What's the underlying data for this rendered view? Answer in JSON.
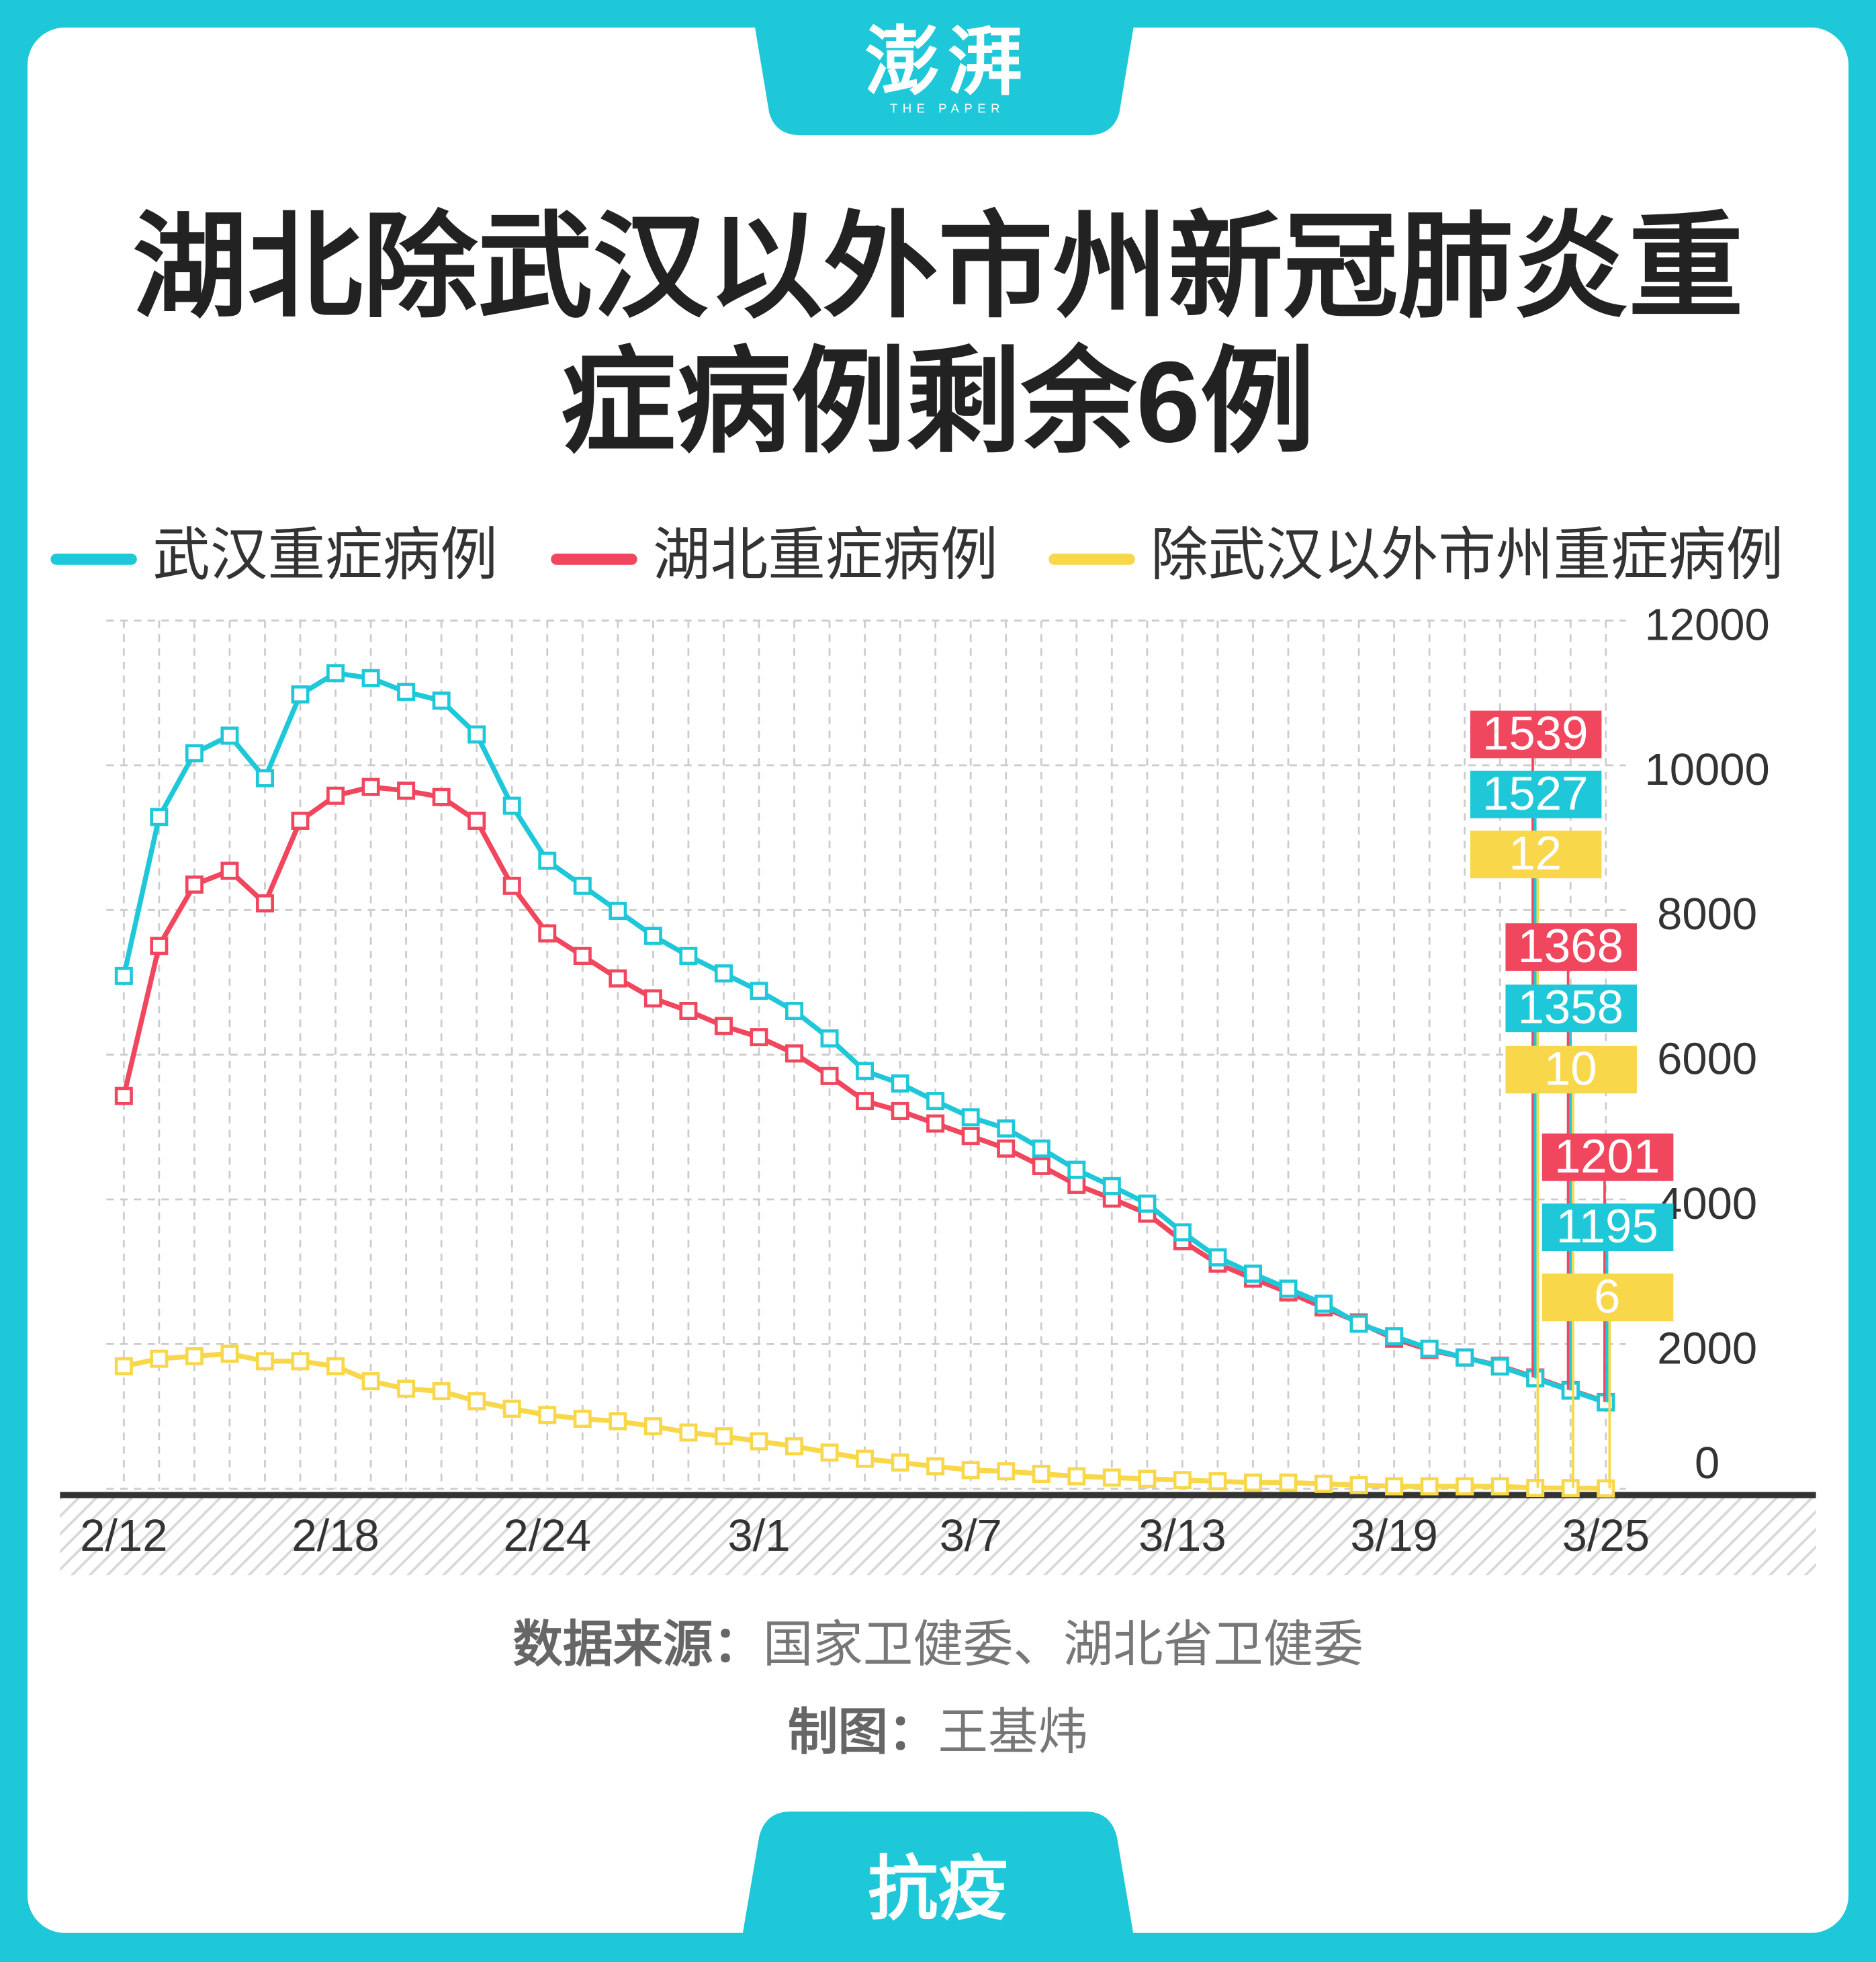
{
  "logo": {
    "name": "澎湃",
    "subtitle": "THE PAPER"
  },
  "chart_data": {
    "type": "line",
    "title": "湖北除武汉以外市州新冠肺炎重症病例剩余6例",
    "categories": [
      "2/12",
      null,
      null,
      null,
      null,
      null,
      "2/18",
      null,
      null,
      null,
      null,
      null,
      "2/24",
      null,
      null,
      null,
      null,
      null,
      "3/1",
      null,
      null,
      null,
      null,
      null,
      "3/7",
      null,
      null,
      null,
      null,
      null,
      "3/13",
      null,
      null,
      null,
      null,
      null,
      "3/19",
      null,
      null,
      null,
      null,
      null,
      "3/25"
    ],
    "series": [
      {
        "name": "武汉重症病例",
        "color": "#1fc8d8",
        "values": [
          7089,
          9285,
          10167,
          10409,
          9821,
          10979,
          11273,
          11204,
          11014,
          10893,
          10426,
          9441,
          8680,
          8334,
          7988,
          7642,
          7366,
          7123,
          6882,
          6605,
          6225,
          5775,
          5602,
          5360,
          5135,
          4980,
          4703,
          4409,
          4184,
          3942,
          3545,
          3199,
          2974,
          2766,
          2559,
          2282,
          2109,
          1936,
          1815,
          1690,
          1527,
          1358,
          1195
        ]
      },
      {
        "name": "湖北重症病例",
        "color": "#f0465e",
        "values": [
          5429,
          7504,
          8351,
          8541,
          8092,
          9233,
          9579,
          9700,
          9648,
          9561,
          9233,
          8334,
          7677,
          7366,
          7054,
          6778,
          6605,
          6397,
          6242,
          6017,
          5706,
          5360,
          5222,
          5049,
          4876,
          4703,
          4461,
          4201,
          4011,
          3804,
          3423,
          3112,
          2905,
          2715,
          2507,
          2300,
          2075,
          1919,
          1815,
          1700,
          1539,
          1368,
          1201
        ]
      },
      {
        "name": "除武汉以外市州重症病例",
        "color": "#f8d84a",
        "values": [
          1694,
          1798,
          1833,
          1867,
          1764,
          1764,
          1694,
          1487,
          1383,
          1349,
          1210,
          1107,
          1020,
          968,
          934,
          865,
          778,
          726,
          657,
          588,
          501,
          415,
          363,
          311,
          259,
          242,
          207,
          173,
          156,
          138,
          121,
          104,
          86,
          86,
          69,
          52,
          35,
          35,
          35,
          35,
          12,
          10,
          6
        ]
      }
    ],
    "ylim": [
      0,
      12000
    ],
    "yticks": [
      0,
      2000,
      4000,
      6000,
      8000,
      10000,
      12000
    ],
    "grid": true,
    "y_axis_side": "right"
  },
  "footer": {
    "source_label": "数据来源：",
    "source": "国家卫健委、湖北省卫健委",
    "credit_label": "制图：",
    "credit": "王基炜",
    "tag": "抗疫"
  }
}
